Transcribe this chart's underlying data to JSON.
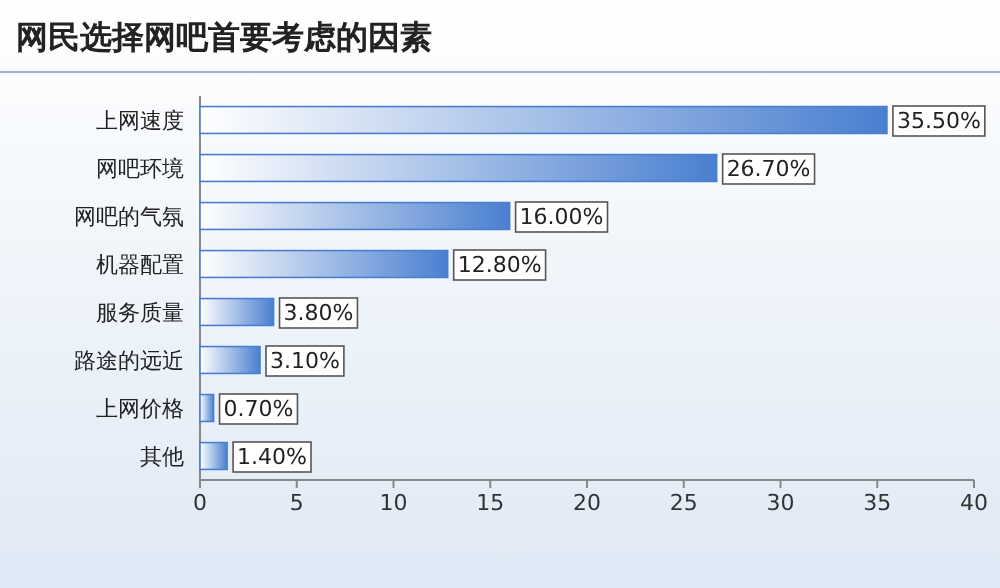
{
  "chart_data": {
    "type": "bar",
    "orientation": "horizontal",
    "title": "网民选择网吧首要考虑的因素",
    "categories": [
      "上网速度",
      "网吧环境",
      "网吧的气氛",
      "机器配置",
      "服务质量",
      "路途的远近",
      "上网价格",
      "其他"
    ],
    "values": [
      35.5,
      26.7,
      16.0,
      12.8,
      3.8,
      3.1,
      0.7,
      1.4
    ],
    "value_labels": [
      "35.50%",
      "26.70%",
      "16.00%",
      "12.80%",
      "3.80%",
      "3.10%",
      "0.70%",
      "1.40%"
    ],
    "color": "#4a7fd0",
    "xlim": [
      0,
      40
    ],
    "xticks": [
      0,
      5,
      10,
      15,
      20,
      25,
      30,
      35,
      40
    ]
  }
}
